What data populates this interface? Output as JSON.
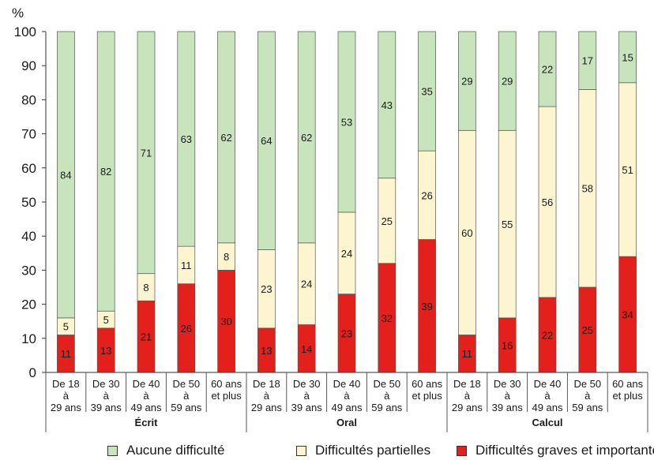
{
  "chart_data": {
    "type": "bar",
    "stacked": true,
    "ylabel": "%",
    "ylim": [
      0,
      100
    ],
    "yticks": [
      0,
      10,
      20,
      30,
      40,
      50,
      60,
      70,
      80,
      90,
      100
    ],
    "groups": [
      {
        "name": "Écrit",
        "categories": [
          [
            "De 18",
            "à",
            "29 ans"
          ],
          [
            "De 30",
            "à",
            "39 ans"
          ],
          [
            "De 40",
            "à",
            "49 ans"
          ],
          [
            "De 50",
            "à",
            "59 ans"
          ],
          [
            "60 ans",
            "et plus"
          ]
        ]
      },
      {
        "name": "Oral",
        "categories": [
          [
            "De 18",
            "à",
            "29 ans"
          ],
          [
            "De 30",
            "à",
            "39 ans"
          ],
          [
            "De 40",
            "à",
            "49 ans"
          ],
          [
            "De 50",
            "à",
            "59 ans"
          ],
          [
            "60 ans",
            "et plus"
          ]
        ]
      },
      {
        "name": "Calcul",
        "categories": [
          [
            "De 18",
            "à",
            "29 ans"
          ],
          [
            "De 30",
            "à",
            "39 ans"
          ],
          [
            "De 40",
            "à",
            "49 ans"
          ],
          [
            "De 50",
            "à",
            "59 ans"
          ],
          [
            "60 ans",
            "et plus"
          ]
        ]
      }
    ],
    "series": [
      {
        "name": "Difficultés graves et importantes",
        "color": "#e3201b",
        "values": [
          11,
          13,
          21,
          26,
          30,
          13,
          14,
          23,
          32,
          39,
          11,
          16,
          22,
          25,
          34
        ]
      },
      {
        "name": "Difficultés partielles",
        "color": "#fcf5d0",
        "values": [
          5,
          5,
          8,
          11,
          8,
          23,
          24,
          24,
          25,
          26,
          60,
          55,
          56,
          58,
          51
        ]
      },
      {
        "name": "Aucune difficulté",
        "color": "#c8e4bd",
        "values": [
          84,
          82,
          71,
          63,
          62,
          64,
          62,
          53,
          43,
          35,
          29,
          29,
          22,
          17,
          15
        ]
      }
    ],
    "legend_placement": "bottom",
    "grid": false
  },
  "legend": [
    {
      "label": "Aucune difficulté",
      "color": "#c8e4bd"
    },
    {
      "label": "Difficultés partielles",
      "color": "#fcf5d0"
    },
    {
      "label": "Difficultés graves et importantes",
      "color": "#e3201b"
    }
  ]
}
